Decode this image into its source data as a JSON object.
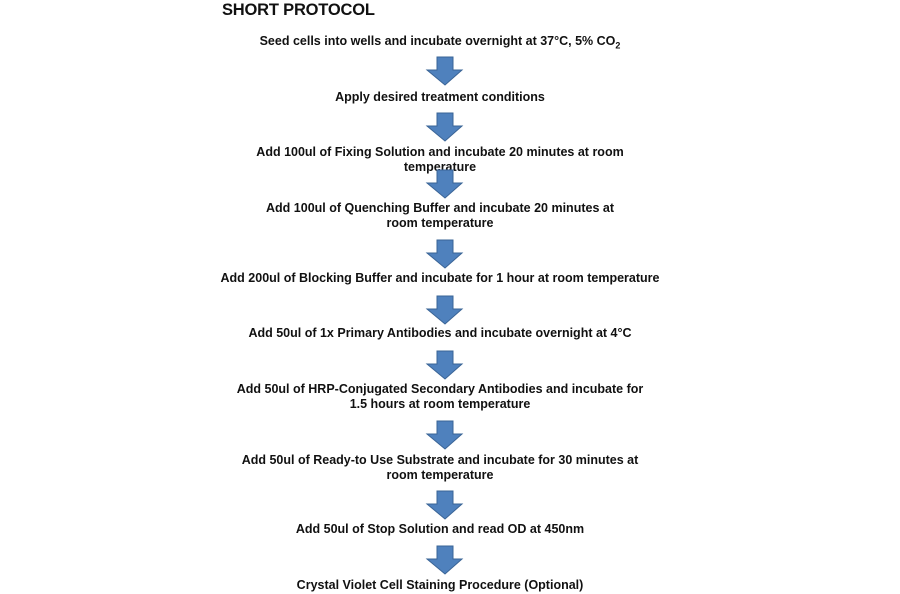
{
  "title": "SHORT PROTOCOL",
  "steps": [
    {
      "text": "Seed cells into wells and incubate overnight at 37°C, 5% CO",
      "sub": "2"
    },
    {
      "text": "Apply desired treatment conditions"
    },
    {
      "text": "Add 100ul of Fixing Solution and incubate 20 minutes at room temperature"
    },
    {
      "text": "Add 100ul of Quenching Buffer and incubate 20 minutes at room temperature"
    },
    {
      "text": "Add 200ul of Blocking Buffer and incubate for 1 hour at room temperature"
    },
    {
      "text": "Add 50ul of 1x Primary Antibodies and incubate overnight at 4°C"
    },
    {
      "text": "Add 50ul of HRP-Conjugated Secondary Antibodies and incubate for 1.5 hours at room temperature"
    },
    {
      "text": "Add 50ul of Ready-to Use Substrate and incubate for 30 minutes at room temperature"
    },
    {
      "text": "Add 50ul of Stop Solution and read OD at 450nm"
    },
    {
      "text": "Crystal Violet Cell Staining Procedure (Optional)"
    }
  ],
  "colors": {
    "arrow_fill": "#4f81bd",
    "arrow_stroke": "#3a6496"
  },
  "icons": {
    "connector": "down-arrow-icon"
  }
}
